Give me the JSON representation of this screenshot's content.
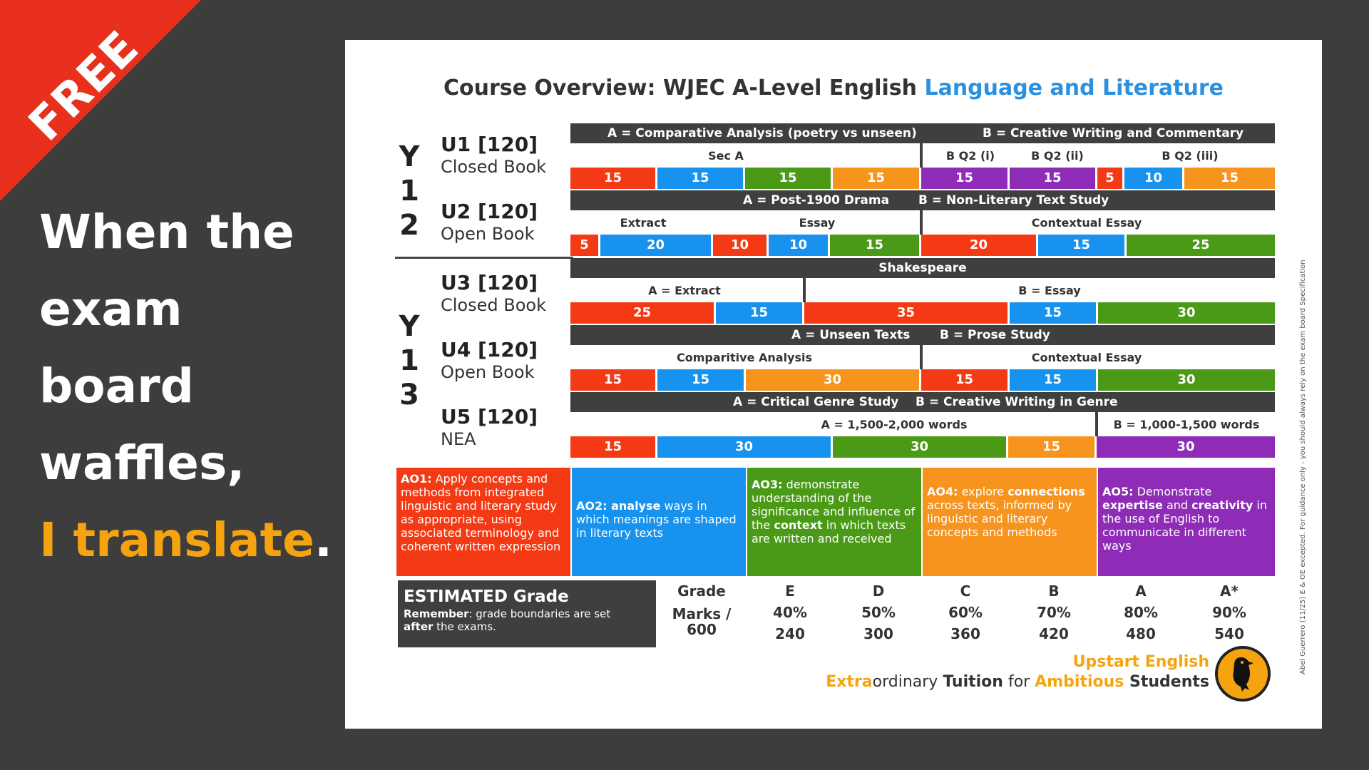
{
  "ribbon": "FREE",
  "slogan": {
    "line1": "When the",
    "line2": "exam",
    "line3": "board",
    "line4": "waffles,",
    "accent": "I translate",
    "dot": "."
  },
  "title": {
    "main": "Course Overview: WJEC A-Level English ",
    "accent": "Language and Literature"
  },
  "years": {
    "y12": [
      "Y",
      "1",
      "2"
    ],
    "y13": [
      "Y",
      "1",
      "3"
    ]
  },
  "units": [
    {
      "name": "U1 [120]",
      "sub": "Closed Book"
    },
    {
      "name": "U2 [120]",
      "sub": "Open Book"
    },
    {
      "name": "U3 [120]",
      "sub": "Closed Book"
    },
    {
      "name": "U4 [120]",
      "sub": "Open Book"
    },
    {
      "name": "U5 [120]",
      "sub": "NEA"
    }
  ],
  "u1": {
    "hdr_a": "A = Comparative Analysis (poetry vs unseen)",
    "hdr_b": "B = Creative Writing and Commentary",
    "sec_a": "Sec A",
    "bq1": "B Q2 (i)",
    "bq2": "B Q2 (ii)",
    "bq3": "B Q2 (iii)",
    "cells": [
      "15",
      "15",
      "15",
      "15",
      "15",
      "15",
      "5",
      "10",
      "15"
    ]
  },
  "u2": {
    "hdr_a": "A = Post-1900 Drama",
    "hdr_b": "B = Non-Literary Text Study",
    "extract": "Extract",
    "essay": "Essay",
    "contextual": "Contextual Essay",
    "cells": [
      "5",
      "20",
      "10",
      "10",
      "15",
      "20",
      "15",
      "25"
    ]
  },
  "u3": {
    "hdr": "Shakespeare",
    "a": "A = Extract",
    "b": "B = Essay",
    "cells": [
      "25",
      "15",
      "35",
      "15",
      "30"
    ]
  },
  "u4": {
    "hdr_a": "A = Unseen Texts",
    "hdr_b": "B = Prose Study",
    "comp": "Comparitive Analysis",
    "contextual": "Contextual Essay",
    "cells": [
      "15",
      "15",
      "30",
      "15",
      "15",
      "30"
    ]
  },
  "u5": {
    "hdr_a": "A = Critical Genre Study",
    "hdr_b": "B = Creative Writing in Genre",
    "a": "A = 1,500-2,000 words",
    "b": "B = 1,000-1,500  words",
    "cells": [
      "15",
      "30",
      "30",
      "15",
      "30"
    ]
  },
  "ao": [
    {
      "code": "AO1:",
      "text": " Apply concepts and methods from integrated linguistic and literary study as appropriate, using associated terminology and coherent written expression"
    },
    {
      "code": "AO2:",
      "bold": " analyse",
      "text": " ways in which meanings are shaped in literary texts"
    },
    {
      "code": "AO3:",
      "text1": " demonstrate understanding of the significance and influence of the ",
      "bold": "context",
      "text2": " in which texts are written and received"
    },
    {
      "code": "AO4:",
      "text1": " explore ",
      "bold": "connections",
      "text2": " across texts, informed by linguistic and literary concepts and methods"
    },
    {
      "code": "AO5:",
      "text1": " Demonstrate ",
      "bold1": "expertise",
      "mid": " and ",
      "bold2": "creativity",
      "text2": " in the use of English to communicate in different ways"
    }
  ],
  "estimated": {
    "title": "ESTIMATED Grade",
    "rem_bold": "Remember",
    "rem": ": grade boundaries are set ",
    "after_bold": "after",
    "after": " the exams."
  },
  "grades": {
    "grade_label": "Grade",
    "marks_label": "Marks / 600",
    "cols": [
      {
        "g": "E",
        "p": "40%",
        "m": "240"
      },
      {
        "g": "D",
        "p": "50%",
        "m": "300"
      },
      {
        "g": "C",
        "p": "60%",
        "m": "360"
      },
      {
        "g": "B",
        "p": "70%",
        "m": "420"
      },
      {
        "g": "A",
        "p": "80%",
        "m": "480"
      },
      {
        "g": "A*",
        "p": "90%",
        "m": "540"
      }
    ]
  },
  "brand": {
    "name": "Upstart English",
    "t1": "Extra",
    "t2": "ordinary ",
    "t3": "Tuition",
    "t4": " for ",
    "t5": "Ambitious",
    "t6": " Students"
  },
  "side_note": "Abel Guerrero (11/25) E & OE excepted. For guidance only - you should always rely on the exam board Specification",
  "colors": {
    "red": "#f33a14",
    "blue": "#1792ee",
    "green": "#4a9a18",
    "orange": "#f7941d",
    "purple": "#8e2cb8",
    "accent": "#f5a410"
  },
  "icons": {
    "logo": "crow-icon"
  }
}
